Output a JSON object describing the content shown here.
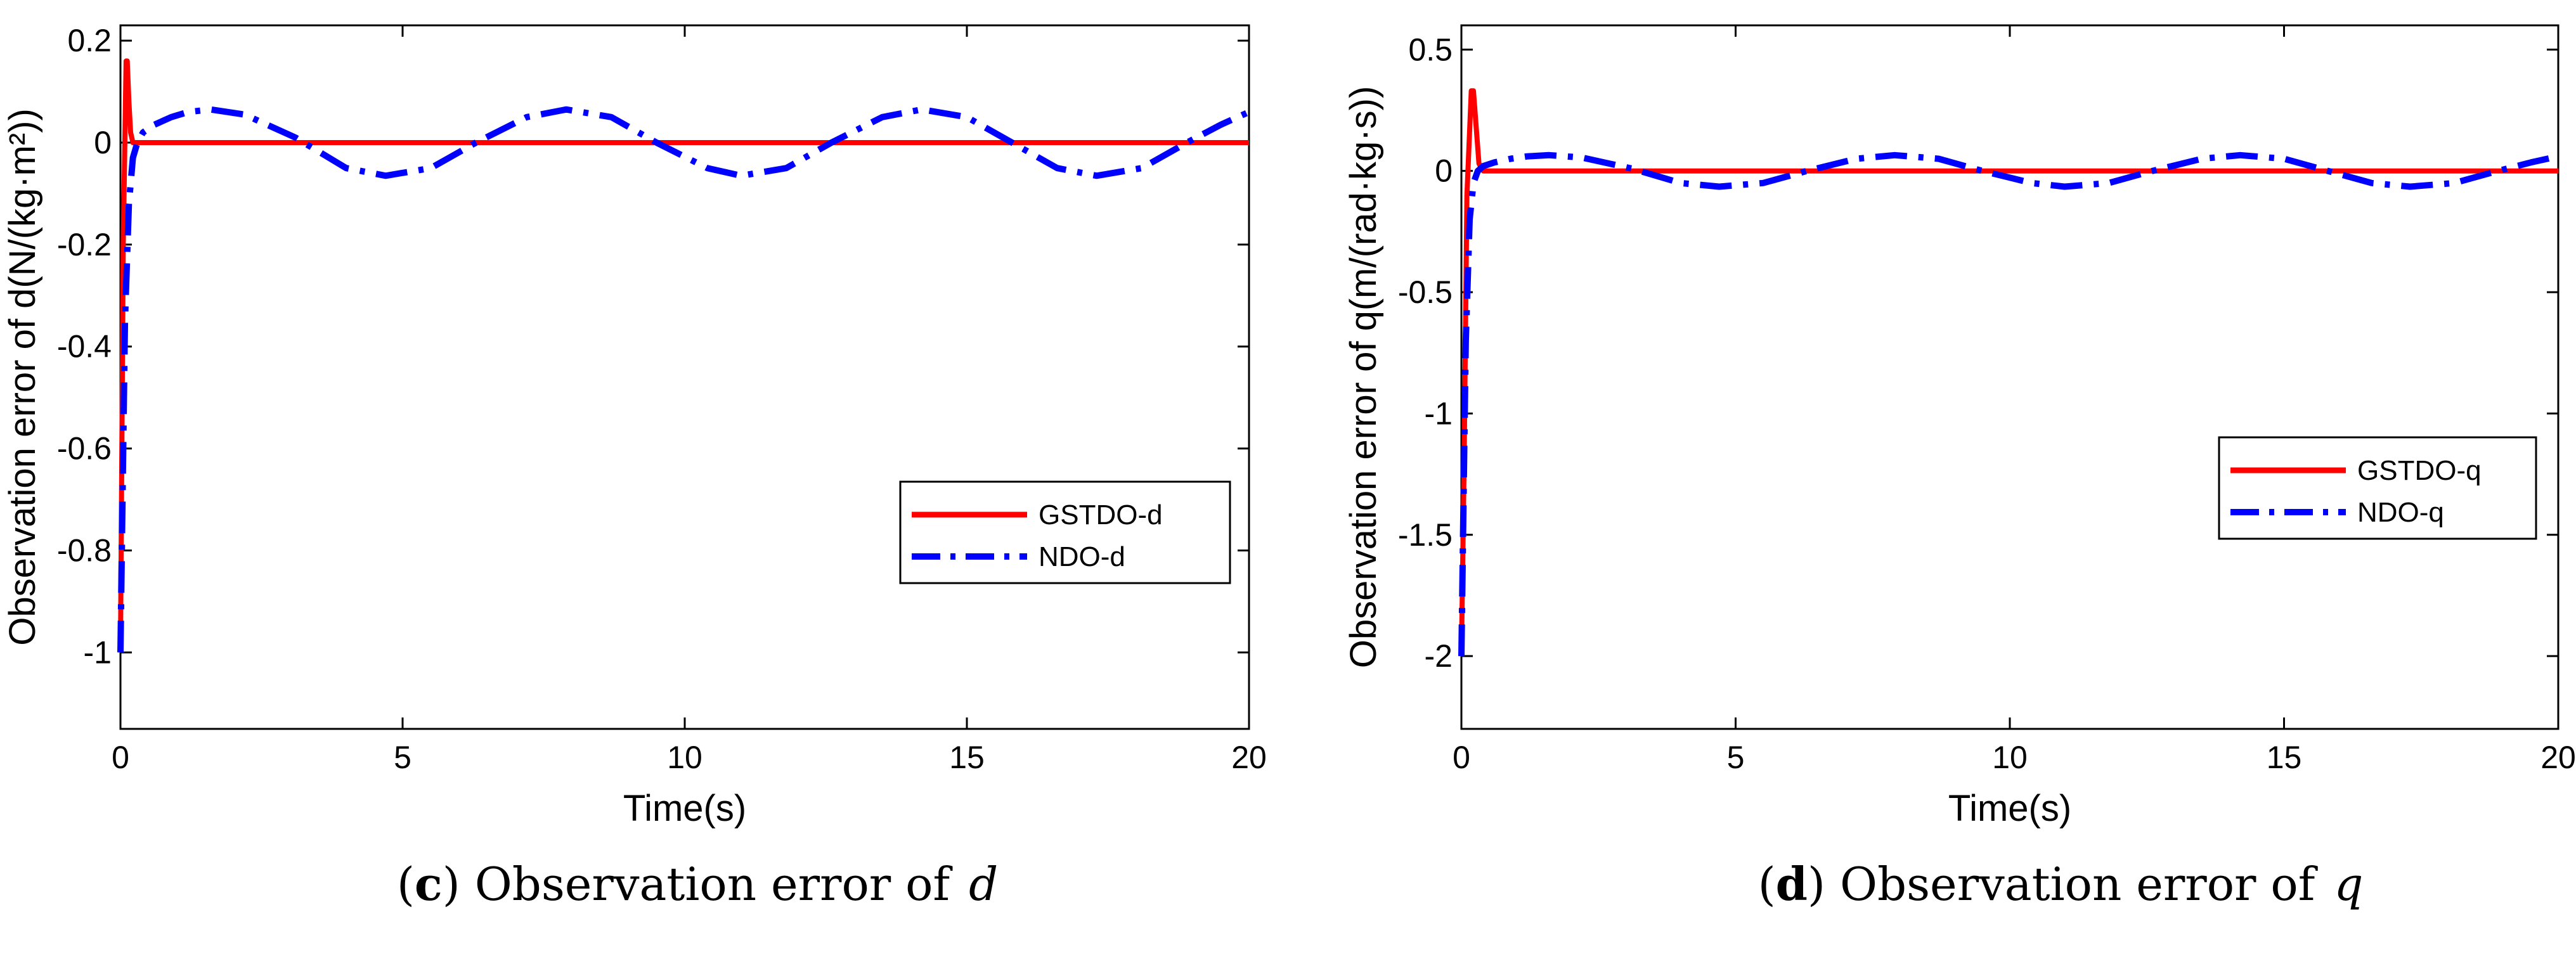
{
  "chart_data": [
    {
      "id": "c",
      "type": "line",
      "caption_letter": "c",
      "caption_text": "Observation error of",
      "caption_symbol": "d",
      "xlabel": "Time(s)",
      "ylabel": "Observation error of d(N/(kg·m²))",
      "xlim": [
        0,
        20
      ],
      "ylim": [
        -1.15,
        0.23
      ],
      "xticks": [
        0,
        5,
        10,
        15,
        20
      ],
      "yticks": [
        0.2,
        0,
        -0.2,
        -0.4,
        -0.6,
        -0.8,
        -1
      ],
      "ytick_labels": [
        "0.2",
        "0",
        "-0.2",
        "-0.4",
        "-0.6",
        "-0.8",
        "-1"
      ],
      "grid": false,
      "legend": "right-lower-middle",
      "series": [
        {
          "name": "GSTDO-d",
          "color": "#ff0000",
          "style": "solid",
          "x": [
            0,
            0.05,
            0.1,
            0.12,
            0.15,
            0.18,
            0.22,
            0.3,
            20
          ],
          "y": [
            -1.0,
            -0.2,
            0.16,
            0.16,
            0.08,
            0.02,
            0.0,
            0.0,
            0.0
          ]
        },
        {
          "name": "NDO-d",
          "color": "#0000ff",
          "style": "dashdot",
          "x": [
            0,
            0.03,
            0.08,
            0.15,
            0.22,
            0.3,
            0.4,
            0.6,
            0.9,
            1.2,
            1.6,
            2.2,
            3.1,
            4.0,
            4.7,
            5.5,
            6.3,
            7.2,
            7.9,
            8.7,
            9.5,
            10.4,
            11.0,
            11.8,
            12.6,
            13.5,
            14.2,
            15.0,
            15.8,
            16.6,
            17.3,
            18.1,
            18.9,
            19.5,
            20.0
          ],
          "y": [
            -1.0,
            -0.75,
            -0.35,
            -0.12,
            -0.03,
            0.0,
            0.02,
            0.035,
            0.05,
            0.06,
            0.065,
            0.055,
            0.01,
            -0.05,
            -0.065,
            -0.05,
            0.0,
            0.05,
            0.065,
            0.05,
            0.0,
            -0.05,
            -0.065,
            -0.05,
            0.0,
            0.05,
            0.065,
            0.05,
            0.0,
            -0.05,
            -0.065,
            -0.05,
            0.0,
            0.035,
            0.06
          ]
        }
      ]
    },
    {
      "id": "d",
      "type": "line",
      "caption_letter": "d",
      "caption_text": "Observation error of",
      "caption_symbol": "q",
      "xlabel": "Time(s)",
      "ylabel": "Observation error of q(m/(rad·kg·s))",
      "xlim": [
        0,
        20
      ],
      "ylim": [
        -2.3,
        0.6
      ],
      "xticks": [
        0,
        5,
        10,
        15,
        20
      ],
      "yticks": [
        0.5,
        0,
        -0.5,
        -1,
        -1.5,
        -2
      ],
      "ytick_labels": [
        "0.5",
        "0",
        "-0.5",
        "-1",
        "-1.5",
        "-2"
      ],
      "grid": false,
      "legend": "right-middle",
      "series": [
        {
          "name": "GSTDO-q",
          "color": "#ff0000",
          "style": "solid",
          "x": [
            0,
            0.05,
            0.1,
            0.18,
            0.22,
            0.28,
            0.32,
            0.4,
            20
          ],
          "y": [
            -2.0,
            -1.2,
            -0.1,
            0.33,
            0.33,
            0.15,
            0.03,
            0.0,
            0.0
          ]
        },
        {
          "name": "NDO-q",
          "color": "#0000ff",
          "style": "dashdot",
          "x": [
            0,
            0.03,
            0.08,
            0.15,
            0.22,
            0.3,
            0.4,
            0.6,
            0.9,
            1.2,
            1.6,
            2.2,
            3.1,
            4.0,
            4.7,
            5.5,
            6.3,
            7.2,
            7.9,
            8.7,
            9.5,
            10.4,
            11.0,
            11.8,
            12.6,
            13.5,
            14.2,
            15.0,
            15.8,
            16.6,
            17.3,
            18.1,
            18.9,
            19.5,
            20.0
          ],
          "y": [
            -2.0,
            -1.5,
            -0.7,
            -0.2,
            -0.05,
            0.0,
            0.02,
            0.035,
            0.05,
            0.06,
            0.065,
            0.055,
            0.01,
            -0.05,
            -0.065,
            -0.05,
            0.0,
            0.05,
            0.065,
            0.05,
            0.0,
            -0.05,
            -0.065,
            -0.05,
            0.0,
            0.05,
            0.065,
            0.05,
            0.0,
            -0.05,
            -0.065,
            -0.05,
            0.0,
            0.035,
            0.06
          ]
        }
      ]
    }
  ]
}
